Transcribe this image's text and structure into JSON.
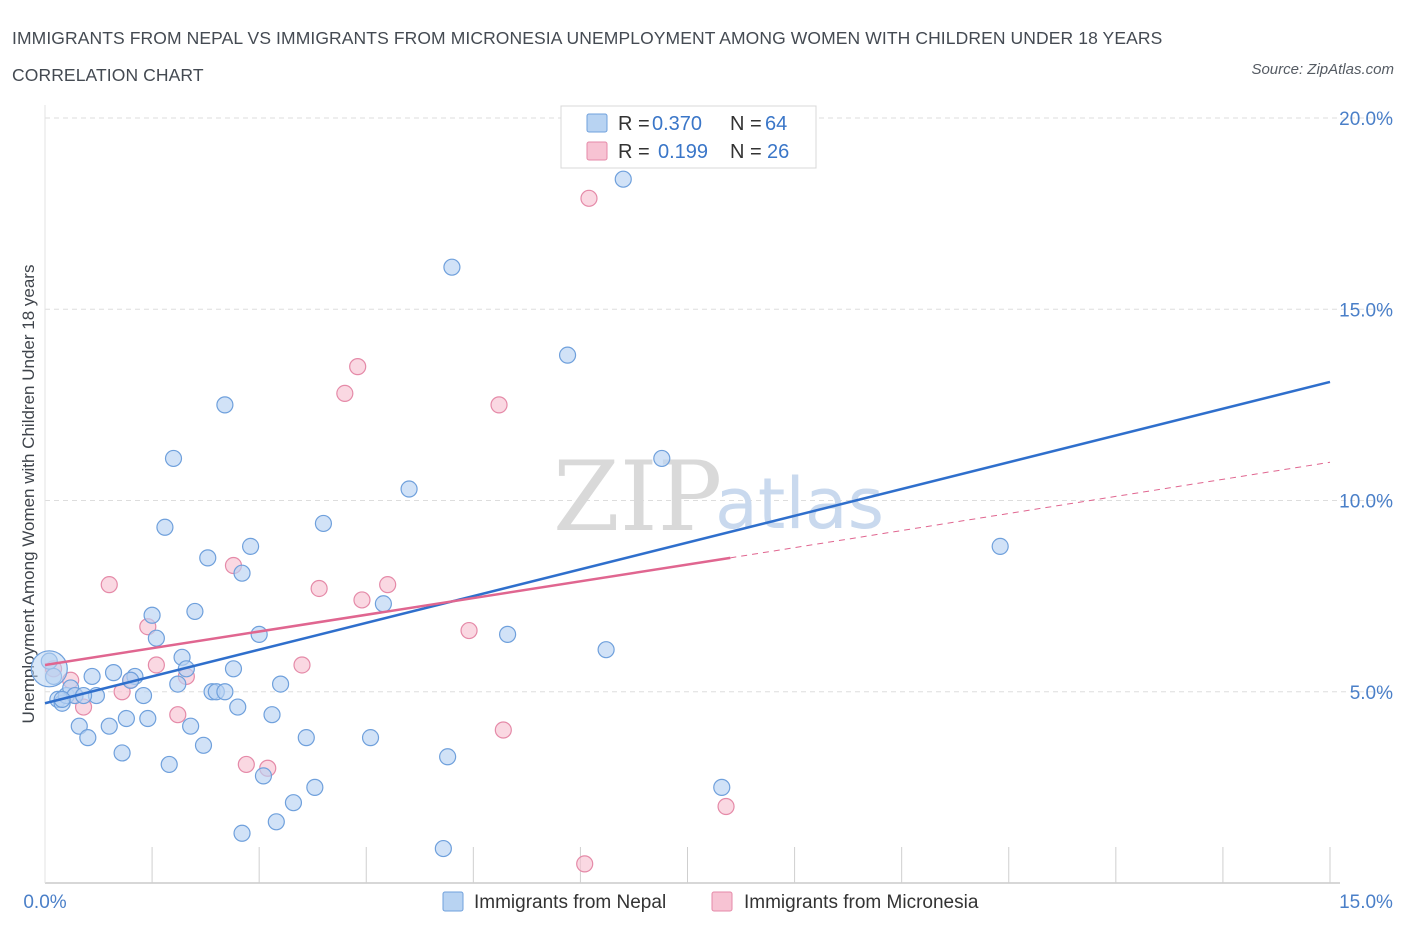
{
  "title": "IMMIGRANTS FROM NEPAL VS IMMIGRANTS FROM MICRONESIA UNEMPLOYMENT AMONG WOMEN WITH CHILDREN UNDER 18 YEARS CORRELATION CHART",
  "source": "Source: ZipAtlas.com",
  "watermark": {
    "zip": "ZIP",
    "atlas": "atlas"
  },
  "colors": {
    "nepal_fill": "#b8d3f2",
    "nepal_stroke": "#6fa0dc",
    "nepal_line": "#2f6fcc",
    "micronesia_fill": "#f7c3d3",
    "micronesia_stroke": "#e58aa8",
    "micronesia_line": "#e06690",
    "grid": "#dddddd",
    "tick_text": "#4a7fc8"
  },
  "legend": {
    "rows": [
      {
        "r_label": "R =",
        "r_value": "0.370",
        "n_label": "N =",
        "n_value": "64"
      },
      {
        "r_label": "R =",
        "r_value": "0.199",
        "n_label": "N =",
        "n_value": "26"
      }
    ]
  },
  "bottom_legend": {
    "nepal": "Immigrants from Nepal",
    "micronesia": "Immigrants from Micronesia"
  },
  "chart_data": {
    "type": "scatter",
    "title": "IMMIGRANTS FROM NEPAL VS IMMIGRANTS FROM MICRONESIA UNEMPLOYMENT AMONG WOMEN WITH CHILDREN UNDER 18 YEARS CORRELATION CHART",
    "xlabel": "",
    "ylabel": "Unemployment Among Women with Children Under 18 years",
    "xlim": [
      0,
      15
    ],
    "ylim": [
      0,
      20
    ],
    "x_tick_labels": [
      "0.0%",
      "15.0%"
    ],
    "y_ticks": [
      5,
      10,
      15,
      20
    ],
    "y_tick_labels": [
      "5.0%",
      "10.0%",
      "15.0%",
      "20.0%"
    ],
    "series": [
      {
        "name": "Immigrants from Nepal",
        "R": 0.37,
        "N": 64,
        "trend": {
          "x": [
            0,
            15
          ],
          "y": [
            4.7,
            13.1
          ]
        },
        "points": [
          [
            0.05,
            5.8
          ],
          [
            0.1,
            5.4
          ],
          [
            0.15,
            4.8
          ],
          [
            0.2,
            4.7
          ],
          [
            0.25,
            4.9
          ],
          [
            0.3,
            5.1
          ],
          [
            0.35,
            4.9
          ],
          [
            0.4,
            4.1
          ],
          [
            0.5,
            3.8
          ],
          [
            0.55,
            5.4
          ],
          [
            0.6,
            4.9
          ],
          [
            0.75,
            4.1
          ],
          [
            0.8,
            5.5
          ],
          [
            0.95,
            4.3
          ],
          [
            0.9,
            3.4
          ],
          [
            1.05,
            5.4
          ],
          [
            1.15,
            4.9
          ],
          [
            1.2,
            4.3
          ],
          [
            1.25,
            7.0
          ],
          [
            1.3,
            6.4
          ],
          [
            1.4,
            9.3
          ],
          [
            1.45,
            3.1
          ],
          [
            1.5,
            11.1
          ],
          [
            1.6,
            5.9
          ],
          [
            1.65,
            5.6
          ],
          [
            1.7,
            4.1
          ],
          [
            1.75,
            7.1
          ],
          [
            1.85,
            3.6
          ],
          [
            1.9,
            8.5
          ],
          [
            1.95,
            5.0
          ],
          [
            2.0,
            5.0
          ],
          [
            2.1,
            5.0
          ],
          [
            2.1,
            12.5
          ],
          [
            2.2,
            5.6
          ],
          [
            2.25,
            4.6
          ],
          [
            2.3,
            8.1
          ],
          [
            2.3,
            1.3
          ],
          [
            2.4,
            8.8
          ],
          [
            2.5,
            6.5
          ],
          [
            2.55,
            2.8
          ],
          [
            2.7,
            1.6
          ],
          [
            2.75,
            5.2
          ],
          [
            2.9,
            2.1
          ],
          [
            3.05,
            3.8
          ],
          [
            3.15,
            2.5
          ],
          [
            3.25,
            9.4
          ],
          [
            3.8,
            3.8
          ],
          [
            3.95,
            7.3
          ],
          [
            4.25,
            10.3
          ],
          [
            4.7,
            3.3
          ],
          [
            4.65,
            0.9
          ],
          [
            4.75,
            16.1
          ],
          [
            5.4,
            6.5
          ],
          [
            6.1,
            13.8
          ],
          [
            6.55,
            6.1
          ],
          [
            7.2,
            11.1
          ],
          [
            7.9,
            2.5
          ],
          [
            11.15,
            8.8
          ],
          [
            6.75,
            18.4
          ],
          [
            0.2,
            4.8
          ],
          [
            0.45,
            4.9
          ],
          [
            1.0,
            5.3
          ],
          [
            1.55,
            5.2
          ],
          [
            2.65,
            4.4
          ]
        ]
      },
      {
        "name": "Immigrants from Micronesia",
        "R": 0.199,
        "N": 26,
        "trend": {
          "x": [
            0,
            8.0
          ],
          "y": [
            5.7,
            8.5
          ]
        },
        "trend_dashed": {
          "x": [
            8.0,
            15
          ],
          "y": [
            8.5,
            11.0
          ]
        },
        "points": [
          [
            0.1,
            5.6
          ],
          [
            0.3,
            5.3
          ],
          [
            0.35,
            4.9
          ],
          [
            0.45,
            4.6
          ],
          [
            0.75,
            7.8
          ],
          [
            0.9,
            5.0
          ],
          [
            1.0,
            5.3
          ],
          [
            1.2,
            6.7
          ],
          [
            1.3,
            5.7
          ],
          [
            1.55,
            4.4
          ],
          [
            1.65,
            5.4
          ],
          [
            2.2,
            8.3
          ],
          [
            2.35,
            3.1
          ],
          [
            2.6,
            3.0
          ],
          [
            3.0,
            5.7
          ],
          [
            3.2,
            7.7
          ],
          [
            3.5,
            12.8
          ],
          [
            3.65,
            13.5
          ],
          [
            3.7,
            7.4
          ],
          [
            4.0,
            7.8
          ],
          [
            4.95,
            6.6
          ],
          [
            5.3,
            12.5
          ],
          [
            5.35,
            4.0
          ],
          [
            6.35,
            17.9
          ],
          [
            7.95,
            2.0
          ],
          [
            6.3,
            0.5
          ]
        ]
      }
    ]
  }
}
